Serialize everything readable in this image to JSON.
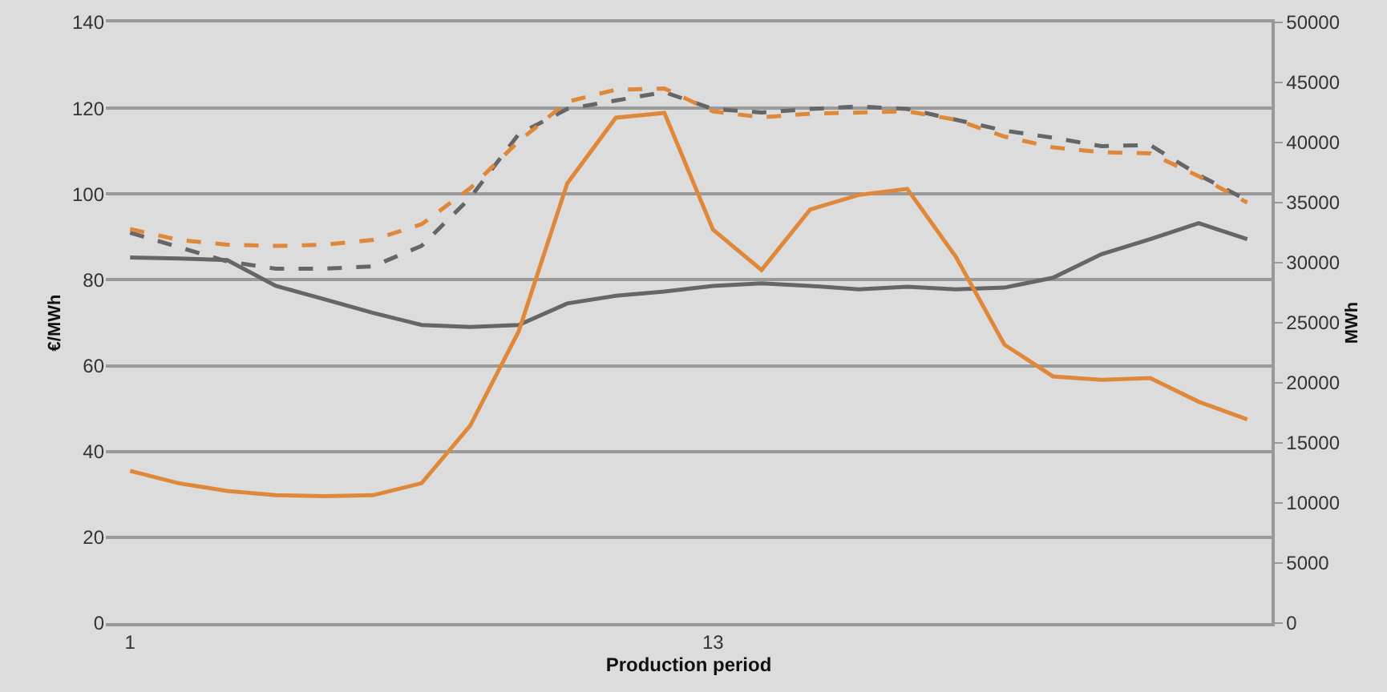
{
  "chart_data": {
    "type": "line",
    "xlabel": "Production period",
    "ylabel": "€/MWh",
    "y2label": "MWh",
    "x": [
      1,
      2,
      3,
      4,
      5,
      6,
      7,
      8,
      9,
      10,
      11,
      12,
      13,
      14,
      15,
      16,
      17,
      18,
      19,
      20,
      21,
      22,
      23,
      24
    ],
    "xlim": [
      0.5,
      24.5
    ],
    "xticks": [
      1,
      13
    ],
    "ylim": [
      0,
      140
    ],
    "yticks": [
      0,
      20,
      40,
      60,
      80,
      100,
      120,
      140
    ],
    "y2lim": [
      0,
      50000
    ],
    "y2ticks": [
      0,
      5000,
      10000,
      15000,
      20000,
      25000,
      30000,
      35000,
      40000,
      45000,
      50000
    ],
    "grid": "y",
    "marker": "none",
    "series": [
      {
        "color": "#666666",
        "line_style": "solid",
        "values": [
          85.2,
          85,
          84.6,
          78.6,
          75.5,
          72.3,
          69.5,
          69,
          69.5,
          74.5,
          76.3,
          77.3,
          78.6,
          79.2,
          78.6,
          77.8,
          78.4,
          77.8,
          78.2,
          80.5,
          86,
          89.5,
          93.2,
          89.5
        ]
      },
      {
        "color": "#e0883a",
        "line_style": "solid",
        "values": [
          35.5,
          32.6,
          30.8,
          29.8,
          29.6,
          29.8,
          32.6,
          46,
          68,
          102.5,
          117.8,
          118.9,
          91.7,
          82.3,
          96.4,
          99.8,
          101.2,
          85.4,
          64.9,
          57.5,
          56.7,
          57.1,
          51.6,
          47.5
        ]
      },
      {
        "color": "#666666",
        "line_style": "dashed",
        "axis": "y2",
        "values": [
          32500,
          31300,
          30100,
          29500,
          29500,
          29700,
          31400,
          35400,
          40700,
          42800,
          43500,
          44200,
          42800,
          42500,
          42800,
          43000,
          42800,
          41900,
          41000,
          40400,
          39700,
          39800,
          37300,
          35200
        ]
      },
      {
        "color": "#e0883a",
        "line_style": "dashed",
        "axis": "y2",
        "values": [
          32800,
          31900,
          31500,
          31400,
          31500,
          31900,
          33200,
          36200,
          40100,
          43400,
          44400,
          44500,
          42600,
          42100,
          42400,
          42500,
          42600,
          41900,
          40500,
          39600,
          39200,
          39100,
          37200,
          35000
        ]
      }
    ]
  }
}
